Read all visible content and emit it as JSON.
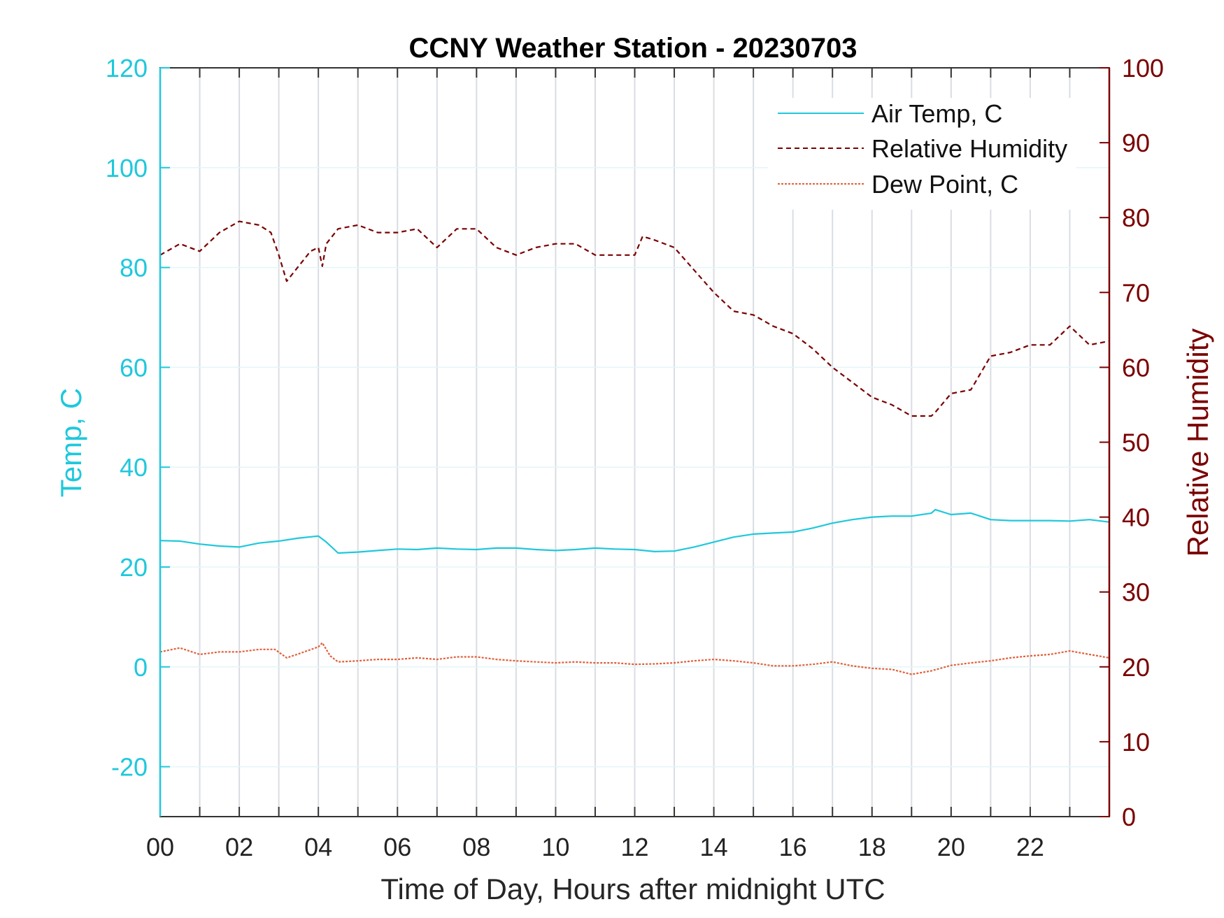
{
  "chart_data": {
    "type": "line",
    "title": "CCNY Weather Station - 20230703",
    "xlabel": "Time of Day, Hours after midnight UTC",
    "ylabel_left": "Temp, C",
    "ylabel_right": "Relative Humidity",
    "xlim": [
      0,
      24
    ],
    "ylim_left": [
      -30,
      120
    ],
    "ylim_right": [
      0,
      100
    ],
    "x_ticks": [
      0,
      2,
      4,
      6,
      8,
      10,
      12,
      14,
      16,
      18,
      20,
      22
    ],
    "x_tick_labels": [
      "00",
      "02",
      "04",
      "06",
      "08",
      "10",
      "12",
      "14",
      "16",
      "18",
      "20",
      "22"
    ],
    "y_left_ticks": [
      -20,
      0,
      20,
      40,
      60,
      80,
      100,
      120
    ],
    "y_right_ticks": [
      0,
      10,
      20,
      30,
      40,
      50,
      60,
      70,
      80,
      90,
      100
    ],
    "grid": true,
    "legend_position": "top-right",
    "colors": {
      "air_temp": "#1fc8dc",
      "humidity": "#7a0000",
      "dew_point": "#e0603a",
      "grid": "#d9dde3",
      "left_axis": "#1fc8dc",
      "right_axis": "#7a0000"
    },
    "series": [
      {
        "name": "Air Temp, C",
        "axis": "left",
        "style": "solid",
        "x": [
          0,
          0.5,
          1,
          1.5,
          2,
          2.5,
          3,
          3.5,
          4,
          4.2,
          4.5,
          5,
          5.5,
          6,
          6.5,
          7,
          7.5,
          8,
          8.5,
          9,
          9.5,
          10,
          10.5,
          11,
          11.5,
          12,
          12.5,
          13,
          13.5,
          14,
          14.5,
          15,
          15.5,
          16,
          16.5,
          17,
          17.5,
          18,
          18.5,
          19,
          19.5,
          19.6,
          20,
          20.5,
          21,
          21.5,
          22,
          22.5,
          23,
          23.5,
          24
        ],
        "y": [
          25.3,
          25.2,
          24.6,
          24.2,
          24.0,
          24.8,
          25.2,
          25.8,
          26.2,
          25.0,
          22.8,
          23.0,
          23.3,
          23.6,
          23.5,
          23.8,
          23.6,
          23.5,
          23.8,
          23.8,
          23.5,
          23.3,
          23.5,
          23.8,
          23.6,
          23.5,
          23.1,
          23.2,
          24.0,
          25.0,
          26.0,
          26.6,
          26.8,
          27.0,
          27.8,
          28.8,
          29.5,
          30.0,
          30.2,
          30.2,
          30.8,
          31.5,
          30.5,
          30.8,
          29.5,
          29.3,
          29.3,
          29.3,
          29.2,
          29.5,
          29.0
        ]
      },
      {
        "name": "Relative Humidity",
        "axis": "right",
        "style": "dashed",
        "x": [
          0,
          0.5,
          1,
          1.5,
          2,
          2.5,
          2.8,
          3.0,
          3.2,
          3.5,
          3.8,
          4.0,
          4.1,
          4.2,
          4.5,
          5.0,
          5.5,
          6.0,
          6.5,
          7.0,
          7.5,
          8.0,
          8.5,
          9.0,
          9.5,
          10.0,
          10.5,
          11.0,
          11.5,
          12.0,
          12.2,
          12.5,
          13.0,
          13.5,
          14.0,
          14.5,
          15.0,
          15.5,
          16.0,
          16.5,
          17.0,
          17.5,
          18.0,
          18.5,
          19.0,
          19.5,
          19.6,
          20.0,
          20.5,
          21.0,
          21.5,
          22.0,
          22.5,
          23.0,
          23.5,
          24.0
        ],
        "y": [
          75.0,
          76.5,
          75.5,
          78.0,
          79.5,
          79.0,
          78.0,
          75.0,
          71.5,
          73.5,
          75.5,
          76.0,
          73.5,
          76.5,
          78.5,
          79.0,
          78.0,
          78.0,
          78.5,
          76.0,
          78.5,
          78.5,
          76.0,
          75.0,
          76.0,
          76.5,
          76.5,
          75.0,
          75.0,
          75.0,
          77.5,
          77.0,
          76.0,
          73.0,
          70.0,
          67.5,
          67.0,
          65.5,
          64.5,
          62.5,
          60.0,
          58.0,
          56.0,
          55.0,
          53.5,
          53.5,
          54.0,
          56.5,
          57.0,
          61.5,
          62.0,
          63.0,
          63.0,
          65.5,
          63.0,
          63.5
        ]
      },
      {
        "name": "Dew Point, C",
        "axis": "left",
        "style": "dotted",
        "x": [
          0,
          0.5,
          1,
          1.5,
          2,
          2.5,
          2.9,
          3.2,
          3.5,
          4.0,
          4.1,
          4.3,
          4.5,
          5,
          5.5,
          6,
          6.5,
          7,
          7.5,
          8,
          8.5,
          9,
          9.5,
          10,
          10.5,
          11,
          11.5,
          12,
          12.5,
          13,
          13.5,
          14,
          14.5,
          15,
          15.5,
          16,
          16.5,
          17,
          17.5,
          18,
          18.5,
          19,
          19.5,
          20,
          20.5,
          21,
          21.5,
          22,
          22.5,
          23,
          23.5,
          24
        ],
        "y": [
          3.0,
          3.8,
          2.5,
          3.0,
          3.0,
          3.5,
          3.5,
          1.8,
          2.6,
          4.0,
          4.8,
          2.2,
          1.0,
          1.2,
          1.5,
          1.5,
          1.8,
          1.5,
          2.0,
          2.0,
          1.5,
          1.2,
          1.0,
          0.8,
          1.0,
          0.8,
          0.8,
          0.5,
          0.6,
          0.8,
          1.2,
          1.5,
          1.2,
          0.8,
          0.2,
          0.2,
          0.5,
          1.0,
          0.2,
          -0.3,
          -0.5,
          -1.5,
          -0.8,
          0.3,
          0.8,
          1.2,
          1.8,
          2.2,
          2.5,
          3.2,
          2.5,
          1.8
        ]
      }
    ]
  }
}
